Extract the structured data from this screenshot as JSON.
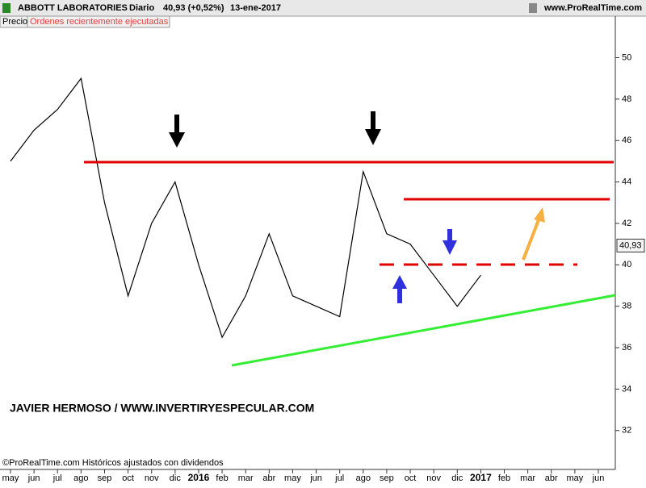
{
  "chart_data": {
    "type": "line",
    "header": [
      "ABBOTT LABORATORIES",
      "Diario",
      "40,93 (+0,52%)",
      "13-ene-2017"
    ],
    "site": "www.ProRealTime.com",
    "panel_label": "Precio",
    "panel_note": "Ordenes recientemente ejecutadas",
    "watermark": "JAVIER HERMOSO / WWW.INVERTIRYESPECULAR.COM",
    "footer": "©ProRealTime.com Históricos ajustados con dividendos",
    "categories": [
      "may",
      "jun",
      "jul",
      "ago",
      "sep",
      "oct",
      "nov",
      "dic",
      "2016",
      "feb",
      "mar",
      "abr",
      "may",
      "jun",
      "jul",
      "ago",
      "sep",
      "oct",
      "nov",
      "dic",
      "2017",
      "feb",
      "mar",
      "abr",
      "may",
      "jun"
    ],
    "bold_categories": [
      "2016",
      "2017"
    ],
    "values": [
      45,
      46.5,
      47.5,
      49,
      43,
      38.5,
      42,
      44,
      40,
      36.5,
      38.5,
      41.5,
      38.5,
      38,
      37.5,
      44.5,
      41.5,
      41,
      39.5,
      38,
      39.5,
      null,
      null,
      null,
      null,
      null
    ],
    "color": "#000000",
    "last_price": {
      "value": 40.93,
      "label": "40,93"
    },
    "ylim": [
      30.2,
      52.2
    ],
    "yticks": [
      32,
      34,
      36,
      38,
      40,
      42,
      44,
      46,
      48,
      50
    ]
  }
}
